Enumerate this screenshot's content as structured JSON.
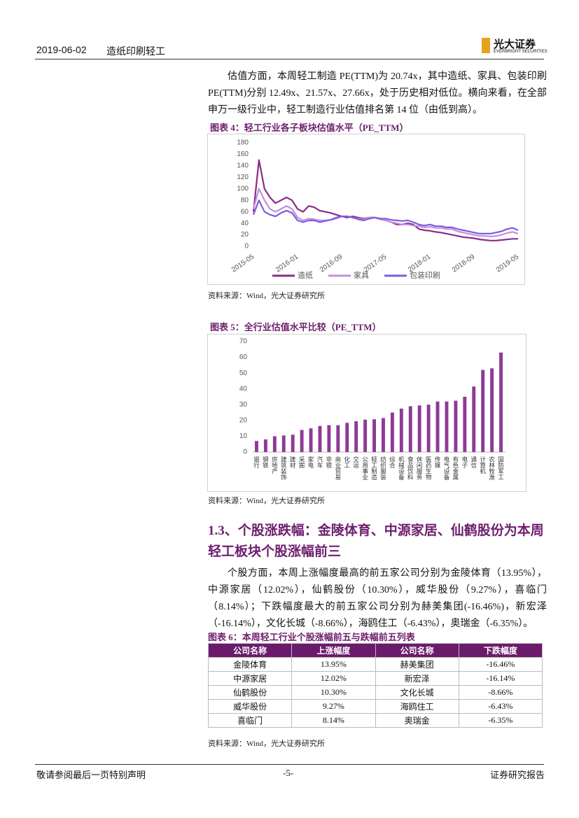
{
  "header": {
    "date": "2019-06-02",
    "sector": "造纸印刷轻工",
    "logo_name": "光大证券",
    "logo_sub": "EVERBRIGHT SECURITIES"
  },
  "paragraph_1": "估值方面，本周轻工制造 PE(TTM)为 20.74x，其中造纸、家具、包装印刷 PE(TTM)分别 12.49x、21.57x、27.66x，处于历史相对低位。横向来看，在全部申万一级行业中，轻工制造行业估值排名第 14 位（由低到高）。",
  "chart_data": [
    {
      "type": "line",
      "title": "图表 4：轻工行业各子板块估值水平（PE_TTM）",
      "source": "资料来源：Wind，光大证券研究所",
      "categories": [
        "2015-05",
        null,
        null,
        null,
        null,
        null,
        null,
        null,
        "2016-01",
        null,
        null,
        null,
        null,
        null,
        null,
        null,
        "2016-09",
        null,
        null,
        null,
        null,
        null,
        null,
        null,
        "2017-05",
        null,
        null,
        null,
        null,
        null,
        null,
        null,
        "2018-01",
        null,
        null,
        null,
        null,
        null,
        null,
        null,
        "2018-09",
        null,
        null,
        null,
        null,
        null,
        null,
        null,
        "2019-05"
      ],
      "series": [
        {
          "name": "造纸",
          "color": "#8b2b86",
          "values": [
            60,
            150,
            100,
            85,
            75,
            80,
            85,
            80,
            65,
            60,
            70,
            68,
            62,
            60,
            58,
            55,
            52,
            50,
            52,
            50,
            48,
            50,
            50,
            48,
            45,
            42,
            38,
            38,
            40,
            38,
            30,
            28,
            27,
            25,
            24,
            22,
            20,
            18,
            16,
            15,
            14,
            12,
            11,
            10,
            10,
            11,
            12,
            13,
            13
          ]
        },
        {
          "name": "家具",
          "color": "#c38edc",
          "values": [
            65,
            100,
            80,
            65,
            60,
            65,
            70,
            65,
            50,
            45,
            48,
            47,
            45,
            45,
            46,
            48,
            52,
            52,
            50,
            48,
            47,
            50,
            50,
            47,
            45,
            42,
            40,
            38,
            38,
            36,
            35,
            33,
            34,
            32,
            32,
            30,
            30,
            26,
            24,
            22,
            20,
            18,
            18,
            17,
            18,
            20,
            23,
            25,
            22
          ]
        },
        {
          "name": "包装印刷",
          "color": "#7c5ce0",
          "values": [
            55,
            80,
            60,
            55,
            52,
            58,
            62,
            58,
            45,
            42,
            45,
            45,
            42,
            44,
            46,
            50,
            52,
            52,
            50,
            47,
            45,
            48,
            50,
            48,
            48,
            46,
            45,
            44,
            45,
            42,
            38,
            36,
            38,
            35,
            35,
            33,
            33,
            30,
            28,
            26,
            24,
            22,
            22,
            22,
            24,
            26,
            30,
            32,
            28
          ]
        }
      ],
      "ylim": [
        0,
        180
      ],
      "yticks": [
        0,
        20,
        40,
        60,
        80,
        100,
        120,
        140,
        160,
        180
      ],
      "grid": false,
      "legend": "bottom"
    },
    {
      "type": "bar",
      "title": "图表 5：全行业估值水平比较（PE_TTM）",
      "source": "资料来源：Wind，光大证券研究所",
      "categories": [
        "银行",
        "钢铁",
        "房地产",
        "建筑装饰",
        "建材",
        "采掘",
        "家电",
        "汽车",
        "非银",
        "商业贸易",
        "化工",
        "交运",
        "公用事业",
        "轻工制造",
        "纺织服装",
        "综合",
        "机械设备",
        "食品饮料",
        "休闲服务",
        "医药生物",
        "传媒",
        "电气设备",
        "有色金属",
        "电子",
        "通信",
        "计算机",
        "农林牧渔",
        "国防军工"
      ],
      "values": [
        7,
        8,
        10,
        10.5,
        11,
        14,
        15,
        16.5,
        17,
        17,
        18.5,
        19.5,
        20.5,
        20.74,
        21.5,
        25,
        27.5,
        29,
        29.5,
        30,
        32,
        32,
        32.5,
        35,
        41.5,
        52,
        53,
        63
      ],
      "color": "#8e3a97",
      "ylim": [
        0,
        70
      ],
      "yticks": [
        0,
        10,
        20,
        30,
        40,
        50,
        60,
        70
      ],
      "grid": false
    }
  ],
  "section_heading": "1.3、个股涨跌幅：金陵体育、中源家居、仙鹤股份为本周轻工板块个股涨幅前三",
  "paragraph_2": "个股方面，本周上涨幅度最高的前五家公司分别为金陵体育（13.95%），中源家居（12.02%），仙鹤股份（10.30%），威华股份（9.27%），喜临门（8.14%）；下跌幅度最大的前五家公司分别为赫美集团(-16.46%)，新宏泽（-16.14%），文化长城（-8.66%），海鸥住工（-6.43%），奥瑞金（-6.35%）。",
  "table": {
    "title": "图表 6：本周轻工行业个股涨幅前五与跌幅前五列表",
    "header": [
      "公司名称",
      "上涨幅度",
      "公司名称",
      "下跌幅度"
    ],
    "rows": [
      [
        "金陵体育",
        "13.95%",
        "赫美集团",
        "-16.46%"
      ],
      [
        "中源家居",
        "12.02%",
        "新宏泽",
        "-16.14%"
      ],
      [
        "仙鹤股份",
        "10.30%",
        "文化长城",
        "-8.66%"
      ],
      [
        "威华股份",
        "9.27%",
        "海鸥住工",
        "-6.43%"
      ],
      [
        "喜临门",
        "8.14%",
        "奥瑞金",
        "-6.35%"
      ]
    ],
    "source": "资料来源：Wind，光大证券研究所"
  },
  "footer": {
    "left": "敬请参阅最后一页特别声明",
    "page": "-5-",
    "right": "证券研究报告"
  }
}
